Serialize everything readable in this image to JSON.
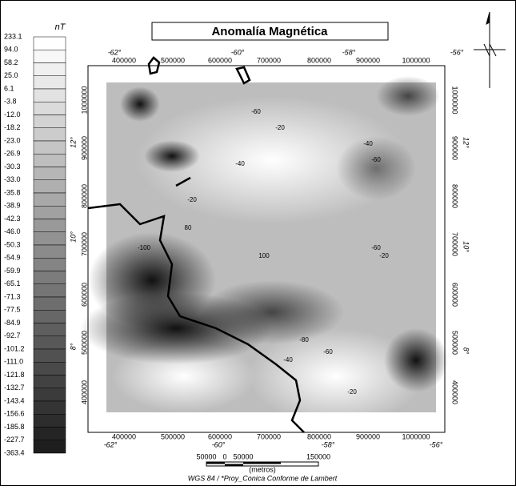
{
  "title": "Anomalía Magnética",
  "legend": {
    "unit": "nT",
    "values": [
      "233.1",
      "94.0",
      "58.2",
      "25.0",
      "6.1",
      "-3.8",
      "-12.0",
      "-18.2",
      "-23.0",
      "-26.9",
      "-30.3",
      "-33.0",
      "-35.8",
      "-38.9",
      "-42.3",
      "-46.0",
      "-50.3",
      "-54.9",
      "-59.9",
      "-65.1",
      "-71.3",
      "-77.5",
      "-84.9",
      "-92.7",
      "-101.2",
      "-111.0",
      "-121.8",
      "-132.7",
      "-143.4",
      "-156.6",
      "-185.8",
      "-227.7",
      "-363.4"
    ]
  },
  "axes": {
    "top_degrees": [
      "-62°",
      "-60°",
      "-58°",
      "-56°"
    ],
    "top_meters": [
      "400000",
      "500000",
      "600000",
      "700000",
      "800000",
      "900000",
      "1000000"
    ],
    "bottom_meters": [
      "400000",
      "500000",
      "600000",
      "700000",
      "800000",
      "900000",
      "1000000"
    ],
    "bottom_degrees": [
      "-62°",
      "-60°",
      "-58°",
      "-56°"
    ],
    "left_degrees": [
      "12°",
      "10°",
      "8°"
    ],
    "left_meters": [
      "1000000",
      "900000",
      "800000",
      "700000",
      "600000",
      "500000",
      "400000"
    ],
    "right_degrees": [
      "12°",
      "10°",
      "8°"
    ],
    "right_meters": [
      "1000000",
      "900000",
      "800000",
      "700000",
      "600000",
      "500000",
      "400000"
    ]
  },
  "scale_bar": {
    "labels": [
      "50000",
      "0",
      "50000",
      "150000"
    ],
    "unit": "(metros)"
  },
  "projection": "WGS 84 / *Proy_Conica Conforme de Lambert",
  "contour_labels": [
    "-60",
    "-20",
    "-40",
    "-60",
    "-20",
    "-40",
    "-20",
    "80",
    "100",
    "-100",
    "-40",
    "-60",
    "-80",
    "-20",
    "-60"
  ]
}
